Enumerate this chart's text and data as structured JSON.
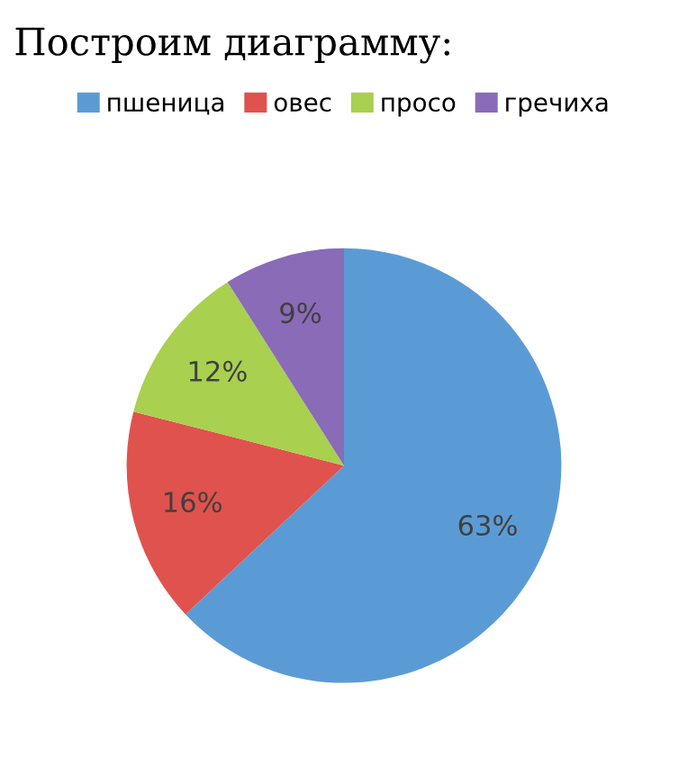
{
  "chart_data": {
    "type": "pie",
    "title": "Построим диаграмму:",
    "categories": [
      "пшеница",
      "овес",
      "просо",
      "гречиха"
    ],
    "values": [
      63,
      16,
      12,
      9
    ],
    "colors": [
      "#5b9bd5",
      "#e0524d",
      "#a9d04f",
      "#8a6bb8"
    ],
    "value_labels": [
      "63%",
      "16%",
      "12%",
      "9%"
    ],
    "legend": "top"
  }
}
